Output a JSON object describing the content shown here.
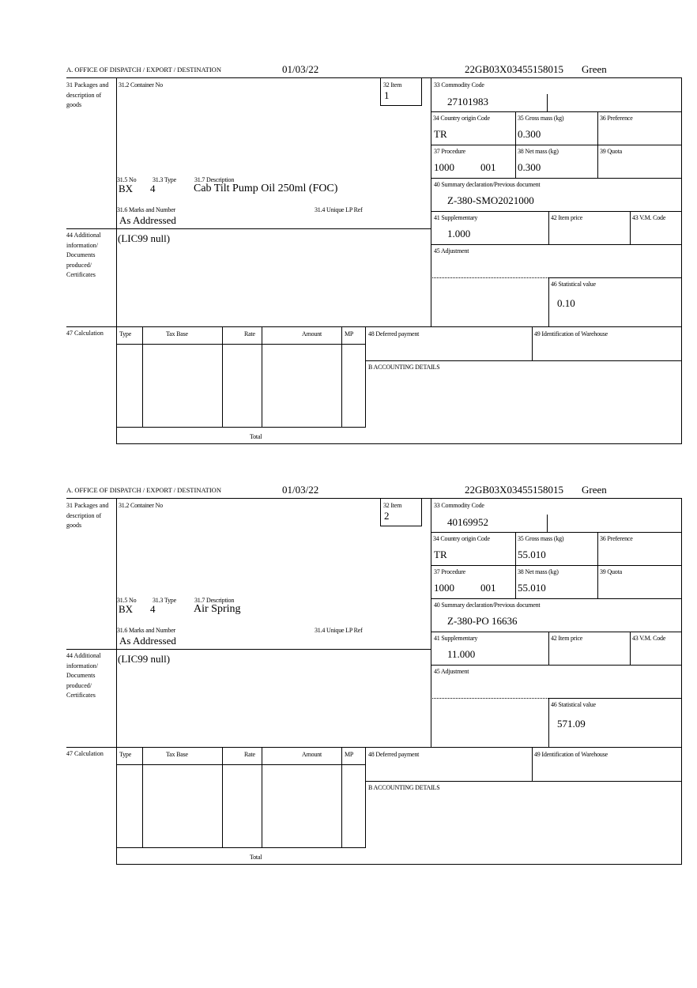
{
  "labels": {
    "office": "A. OFFICE OF DISPATCH / EXPORT / DESTINATION",
    "box31": "31 Packages and description of goods",
    "box31_2": "31.2 Container No",
    "box32": "32 Item",
    "box31_5": "31.5 No",
    "box31_3": "31.3 Type",
    "box31_7": "31.7 Description",
    "box31_6": "31.6 Marks and Number",
    "box31_4": "31.4 Unique LP Ref",
    "box44": "44 Additional information/ Documents produced/ Certificates",
    "box33": "33 Commodity Code",
    "box34": "34 Country origin Code",
    "box35": "35 Gross mass (kg)",
    "box36": "36 Preference",
    "box37": "37 Procedure",
    "box38": "38 Net mass (kg)",
    "box39": "39 Quota",
    "box40": "40 Summary declaration/Previous document",
    "box41": "41 Supplementary",
    "box42": "42 Item price",
    "box43": "43 V.M. Code",
    "box45": "45 Adjustment",
    "box46": "46 Statistical value",
    "box47": "47 Calculation",
    "calc_type": "Type",
    "calc_tax_base": "Tax Base",
    "calc_rate": "Rate",
    "calc_amount": "Amount",
    "calc_mp": "MP",
    "calc_total": "Total",
    "box48": "48 Deferred payment",
    "box49": "49 Identification of Warehouse",
    "accounting": "B ACCOUNTING DETAILS"
  },
  "items": [
    {
      "date": "01/03/22",
      "reference": "22GB03X03455158015",
      "route": "Green",
      "item_no": "1",
      "package_no": "BX",
      "package_type": "4",
      "description": "Cab Tilt Pump Oil 250ml (FOC)",
      "marks": "As Addressed",
      "additional_info": "(LIC99 null)",
      "commodity_code": "27101983",
      "country_origin": "TR",
      "gross_mass": "0.300",
      "procedure": "1000",
      "procedure_additional": "001",
      "net_mass": "0.300",
      "previous_document": "Z-380-SMO2021000",
      "supplementary": "1.000",
      "statistical_value": "0.10"
    },
    {
      "date": "01/03/22",
      "reference": "22GB03X03455158015",
      "route": "Green",
      "item_no": "2",
      "package_no": "BX",
      "package_type": "4",
      "description": "Air Spring",
      "marks": "As Addressed",
      "additional_info": "(LIC99 null)",
      "commodity_code": "40169952",
      "country_origin": "TR",
      "gross_mass": "55.010",
      "procedure": "1000",
      "procedure_additional": "001",
      "net_mass": "55.010",
      "previous_document": "Z-380-PO 16636",
      "supplementary": "11.000",
      "statistical_value": "571.09"
    }
  ]
}
